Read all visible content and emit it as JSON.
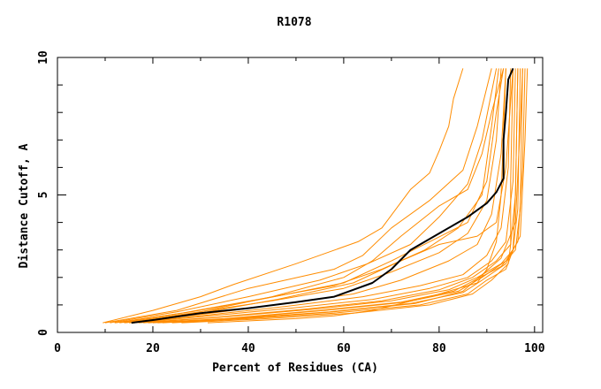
{
  "chart_data": {
    "type": "line",
    "title": "R1078",
    "xlabel": "Percent of Residues (CA)",
    "ylabel": "Distance Cutoff, A",
    "xlim": [
      0,
      101.7
    ],
    "ylim": [
      0,
      10
    ],
    "xticks": [
      0,
      20,
      40,
      60,
      80,
      100
    ],
    "yticks": [
      0,
      5,
      10
    ],
    "grid": false,
    "colors": {
      "models": "#ff8c00",
      "mean": "#000000"
    },
    "series": [
      {
        "name": "model-1",
        "points": [
          [
            9.5,
            0.35
          ],
          [
            20,
            0.8
          ],
          [
            30,
            1.3
          ],
          [
            37,
            1.75
          ],
          [
            50,
            2.5
          ],
          [
            63,
            3.3
          ],
          [
            68,
            3.8
          ],
          [
            74,
            5.2
          ],
          [
            78,
            5.8
          ],
          [
            80,
            6.6
          ],
          [
            82,
            7.5
          ],
          [
            83,
            8.5
          ],
          [
            85,
            9.6
          ]
        ]
      },
      {
        "name": "model-2",
        "points": [
          [
            10,
            0.35
          ],
          [
            25,
            0.8
          ],
          [
            40,
            1.6
          ],
          [
            58,
            2.3
          ],
          [
            64,
            2.8
          ],
          [
            70,
            3.8
          ],
          [
            78,
            4.8
          ],
          [
            85,
            5.9
          ],
          [
            88,
            7.5
          ],
          [
            91,
            9.6
          ]
        ]
      },
      {
        "name": "model-3",
        "points": [
          [
            11,
            0.35
          ],
          [
            25,
            0.75
          ],
          [
            40,
            1.3
          ],
          [
            55,
            1.9
          ],
          [
            65,
            2.5
          ],
          [
            74,
            3.2
          ],
          [
            80,
            4.2
          ],
          [
            86,
            5.4
          ],
          [
            89,
            7.0
          ],
          [
            92,
            9.6
          ]
        ]
      },
      {
        "name": "model-4",
        "points": [
          [
            12,
            0.35
          ],
          [
            26,
            0.7
          ],
          [
            42,
            1.2
          ],
          [
            58,
            1.7
          ],
          [
            68,
            2.3
          ],
          [
            77,
            3.0
          ],
          [
            84,
            3.8
          ],
          [
            89,
            5.0
          ],
          [
            91,
            7.5
          ],
          [
            92.5,
            9.6
          ]
        ]
      },
      {
        "name": "model-5",
        "points": [
          [
            13,
            0.35
          ],
          [
            28,
            0.7
          ],
          [
            45,
            1.15
          ],
          [
            60,
            1.6
          ],
          [
            70,
            2.2
          ],
          [
            80,
            2.9
          ],
          [
            86,
            3.6
          ],
          [
            90,
            4.8
          ],
          [
            92,
            7.0
          ],
          [
            93,
            9.6
          ]
        ]
      },
      {
        "name": "model-6",
        "points": [
          [
            14,
            0.35
          ],
          [
            30,
            0.65
          ],
          [
            48,
            1.05
          ],
          [
            62,
            1.4
          ],
          [
            72,
            1.9
          ],
          [
            82,
            2.6
          ],
          [
            88,
            3.2
          ],
          [
            91,
            4.3
          ],
          [
            93,
            6.5
          ],
          [
            94,
            9.6
          ]
        ]
      },
      {
        "name": "model-7",
        "points": [
          [
            15,
            0.35
          ],
          [
            30,
            0.6
          ],
          [
            48,
            0.95
          ],
          [
            64,
            1.3
          ],
          [
            76,
            1.7
          ],
          [
            85,
            2.1
          ],
          [
            90,
            2.8
          ],
          [
            93,
            3.8
          ],
          [
            94.5,
            6.0
          ],
          [
            95,
            9.6
          ]
        ]
      },
      {
        "name": "model-8",
        "points": [
          [
            16,
            0.35
          ],
          [
            32,
            0.6
          ],
          [
            50,
            0.9
          ],
          [
            66,
            1.2
          ],
          [
            78,
            1.6
          ],
          [
            86,
            2.0
          ],
          [
            91,
            2.6
          ],
          [
            94,
            3.3
          ],
          [
            95.5,
            5.5
          ],
          [
            96,
            9.6
          ]
        ]
      },
      {
        "name": "model-9",
        "points": [
          [
            17,
            0.35
          ],
          [
            33,
            0.55
          ],
          [
            52,
            0.85
          ],
          [
            68,
            1.15
          ],
          [
            80,
            1.55
          ],
          [
            87,
            2.0
          ],
          [
            92,
            2.6
          ],
          [
            95,
            3.2
          ],
          [
            96,
            5.0
          ],
          [
            96.5,
            9.6
          ]
        ]
      },
      {
        "name": "model-10",
        "points": [
          [
            18,
            0.35
          ],
          [
            34,
            0.55
          ],
          [
            54,
            0.85
          ],
          [
            70,
            1.15
          ],
          [
            82,
            1.55
          ],
          [
            88,
            2.0
          ],
          [
            93,
            2.5
          ],
          [
            95.5,
            3.0
          ],
          [
            96.5,
            4.5
          ],
          [
            97,
            9.6
          ]
        ]
      },
      {
        "name": "model-11",
        "points": [
          [
            19,
            0.35
          ],
          [
            35,
            0.5
          ],
          [
            55,
            0.8
          ],
          [
            72,
            1.1
          ],
          [
            83,
            1.5
          ],
          [
            88,
            1.95
          ],
          [
            93,
            2.4
          ],
          [
            96,
            3.0
          ],
          [
            97,
            4.5
          ],
          [
            97.5,
            9.6
          ]
        ]
      },
      {
        "name": "model-12",
        "points": [
          [
            20,
            0.35
          ],
          [
            36,
            0.5
          ],
          [
            56,
            0.8
          ],
          [
            73,
            1.1
          ],
          [
            84,
            1.5
          ],
          [
            89,
            2.0
          ],
          [
            94,
            2.6
          ],
          [
            96.5,
            3.3
          ],
          [
            97.5,
            6.0
          ],
          [
            98,
            9.6
          ]
        ]
      },
      {
        "name": "model-13",
        "points": [
          [
            21,
            0.35
          ],
          [
            37,
            0.5
          ],
          [
            57,
            0.75
          ],
          [
            74,
            1.05
          ],
          [
            85,
            1.45
          ],
          [
            89,
            1.9
          ],
          [
            94,
            2.5
          ],
          [
            97,
            3.5
          ],
          [
            98,
            7.0
          ],
          [
            98.5,
            9.6
          ]
        ]
      },
      {
        "name": "model-14",
        "points": [
          [
            22,
            0.35
          ],
          [
            38,
            0.5
          ],
          [
            58,
            0.75
          ],
          [
            75,
            1.05
          ],
          [
            85,
            1.5
          ],
          [
            89,
            2.1
          ],
          [
            93,
            2.7
          ],
          [
            96,
            4.0
          ],
          [
            97,
            7.5
          ],
          [
            97.5,
            9.6
          ]
        ]
      },
      {
        "name": "model-15",
        "points": [
          [
            12,
            0.35
          ],
          [
            28,
            0.75
          ],
          [
            44,
            1.25
          ],
          [
            60,
            1.8
          ],
          [
            70,
            2.6
          ],
          [
            78,
            3.3
          ],
          [
            86,
            4.0
          ],
          [
            90,
            5.5
          ],
          [
            92,
            8.0
          ],
          [
            93.5,
            9.6
          ]
        ]
      },
      {
        "name": "model-16",
        "points": [
          [
            14,
            0.35
          ],
          [
            30,
            0.7
          ],
          [
            46,
            1.2
          ],
          [
            62,
            1.8
          ],
          [
            72,
            2.6
          ],
          [
            80,
            3.2
          ],
          [
            88,
            3.5
          ],
          [
            92,
            4.0
          ],
          [
            94,
            6.0
          ],
          [
            95.5,
            9.6
          ]
        ]
      },
      {
        "name": "model-17",
        "points": [
          [
            24,
            0.35
          ],
          [
            40,
            0.5
          ],
          [
            58,
            0.7
          ],
          [
            76,
            1.0
          ],
          [
            86,
            1.4
          ],
          [
            90,
            1.9
          ],
          [
            94,
            2.3
          ],
          [
            95.5,
            3.0
          ],
          [
            96,
            5.0
          ],
          [
            96.5,
            9.6
          ]
        ]
      },
      {
        "name": "model-18",
        "points": [
          [
            26,
            0.35
          ],
          [
            44,
            0.5
          ],
          [
            62,
            0.7
          ],
          [
            78,
            1.0
          ],
          [
            87,
            1.4
          ],
          [
            91,
            1.9
          ],
          [
            94.5,
            2.5
          ],
          [
            95,
            3.2
          ],
          [
            95,
            5.5
          ],
          [
            95.5,
            9.6
          ]
        ]
      },
      {
        "name": "model-19",
        "points": [
          [
            31.5,
            0.35
          ],
          [
            50,
            0.5
          ],
          [
            58,
            0.6
          ],
          [
            66,
            0.8
          ],
          [
            78,
            1.3
          ],
          [
            88,
            1.8
          ],
          [
            90,
            2.3
          ],
          [
            92,
            3.3
          ],
          [
            93,
            5.0
          ],
          [
            94,
            9.6
          ]
        ]
      },
      {
        "name": "model-20",
        "points": [
          [
            16,
            0.35
          ],
          [
            30,
            0.75
          ],
          [
            45,
            1.3
          ],
          [
            60,
            2.0
          ],
          [
            66,
            2.6
          ],
          [
            72,
            3.5
          ],
          [
            80,
            4.6
          ],
          [
            86,
            5.2
          ],
          [
            89,
            6.5
          ],
          [
            91,
            8.0
          ],
          [
            93.5,
            9.6
          ]
        ]
      },
      {
        "name": "mean",
        "points": [
          [
            15.5,
            0.35
          ],
          [
            20,
            0.45
          ],
          [
            30,
            0.7
          ],
          [
            40,
            0.88
          ],
          [
            50,
            1.1
          ],
          [
            58,
            1.3
          ],
          [
            62,
            1.55
          ],
          [
            66,
            1.8
          ],
          [
            70,
            2.3
          ],
          [
            74,
            3.0
          ],
          [
            80,
            3.6
          ],
          [
            86,
            4.2
          ],
          [
            90,
            4.7
          ],
          [
            92,
            5.1
          ],
          [
            93.5,
            5.6
          ],
          [
            93.5,
            7.0
          ],
          [
            94,
            8.0
          ],
          [
            94.5,
            9.2
          ],
          [
            95.5,
            9.6
          ]
        ]
      }
    ]
  }
}
